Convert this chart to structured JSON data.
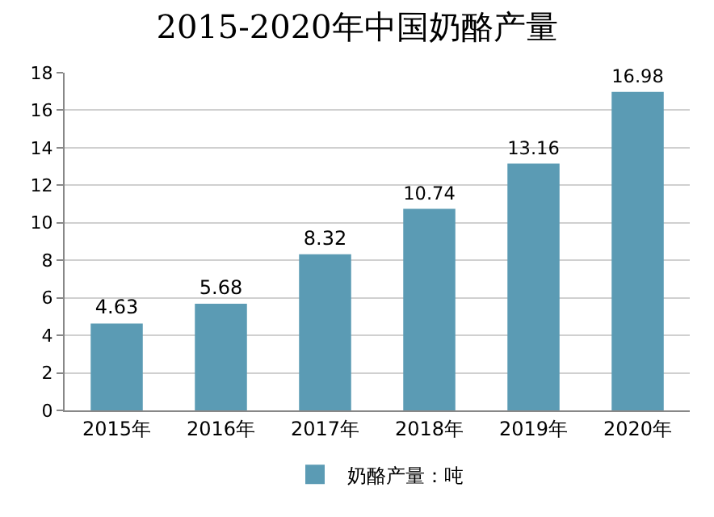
{
  "chart_data": {
    "type": "bar",
    "title": "2015-2020年中国奶酪产量",
    "categories": [
      "2015年",
      "2016年",
      "2017年",
      "2018年",
      "2019年",
      "2020年"
    ],
    "series": [
      {
        "name": "奶酪产量：吨",
        "color": "#5b9bb4",
        "values": [
          4.63,
          5.68,
          8.32,
          10.74,
          13.16,
          16.98
        ]
      }
    ],
    "ylim": [
      0,
      18
    ],
    "yticks": [
      0,
      2,
      4,
      6,
      8,
      10,
      12,
      14,
      16,
      18
    ],
    "grid": "y",
    "data_labels": true,
    "legend": "bottom"
  }
}
